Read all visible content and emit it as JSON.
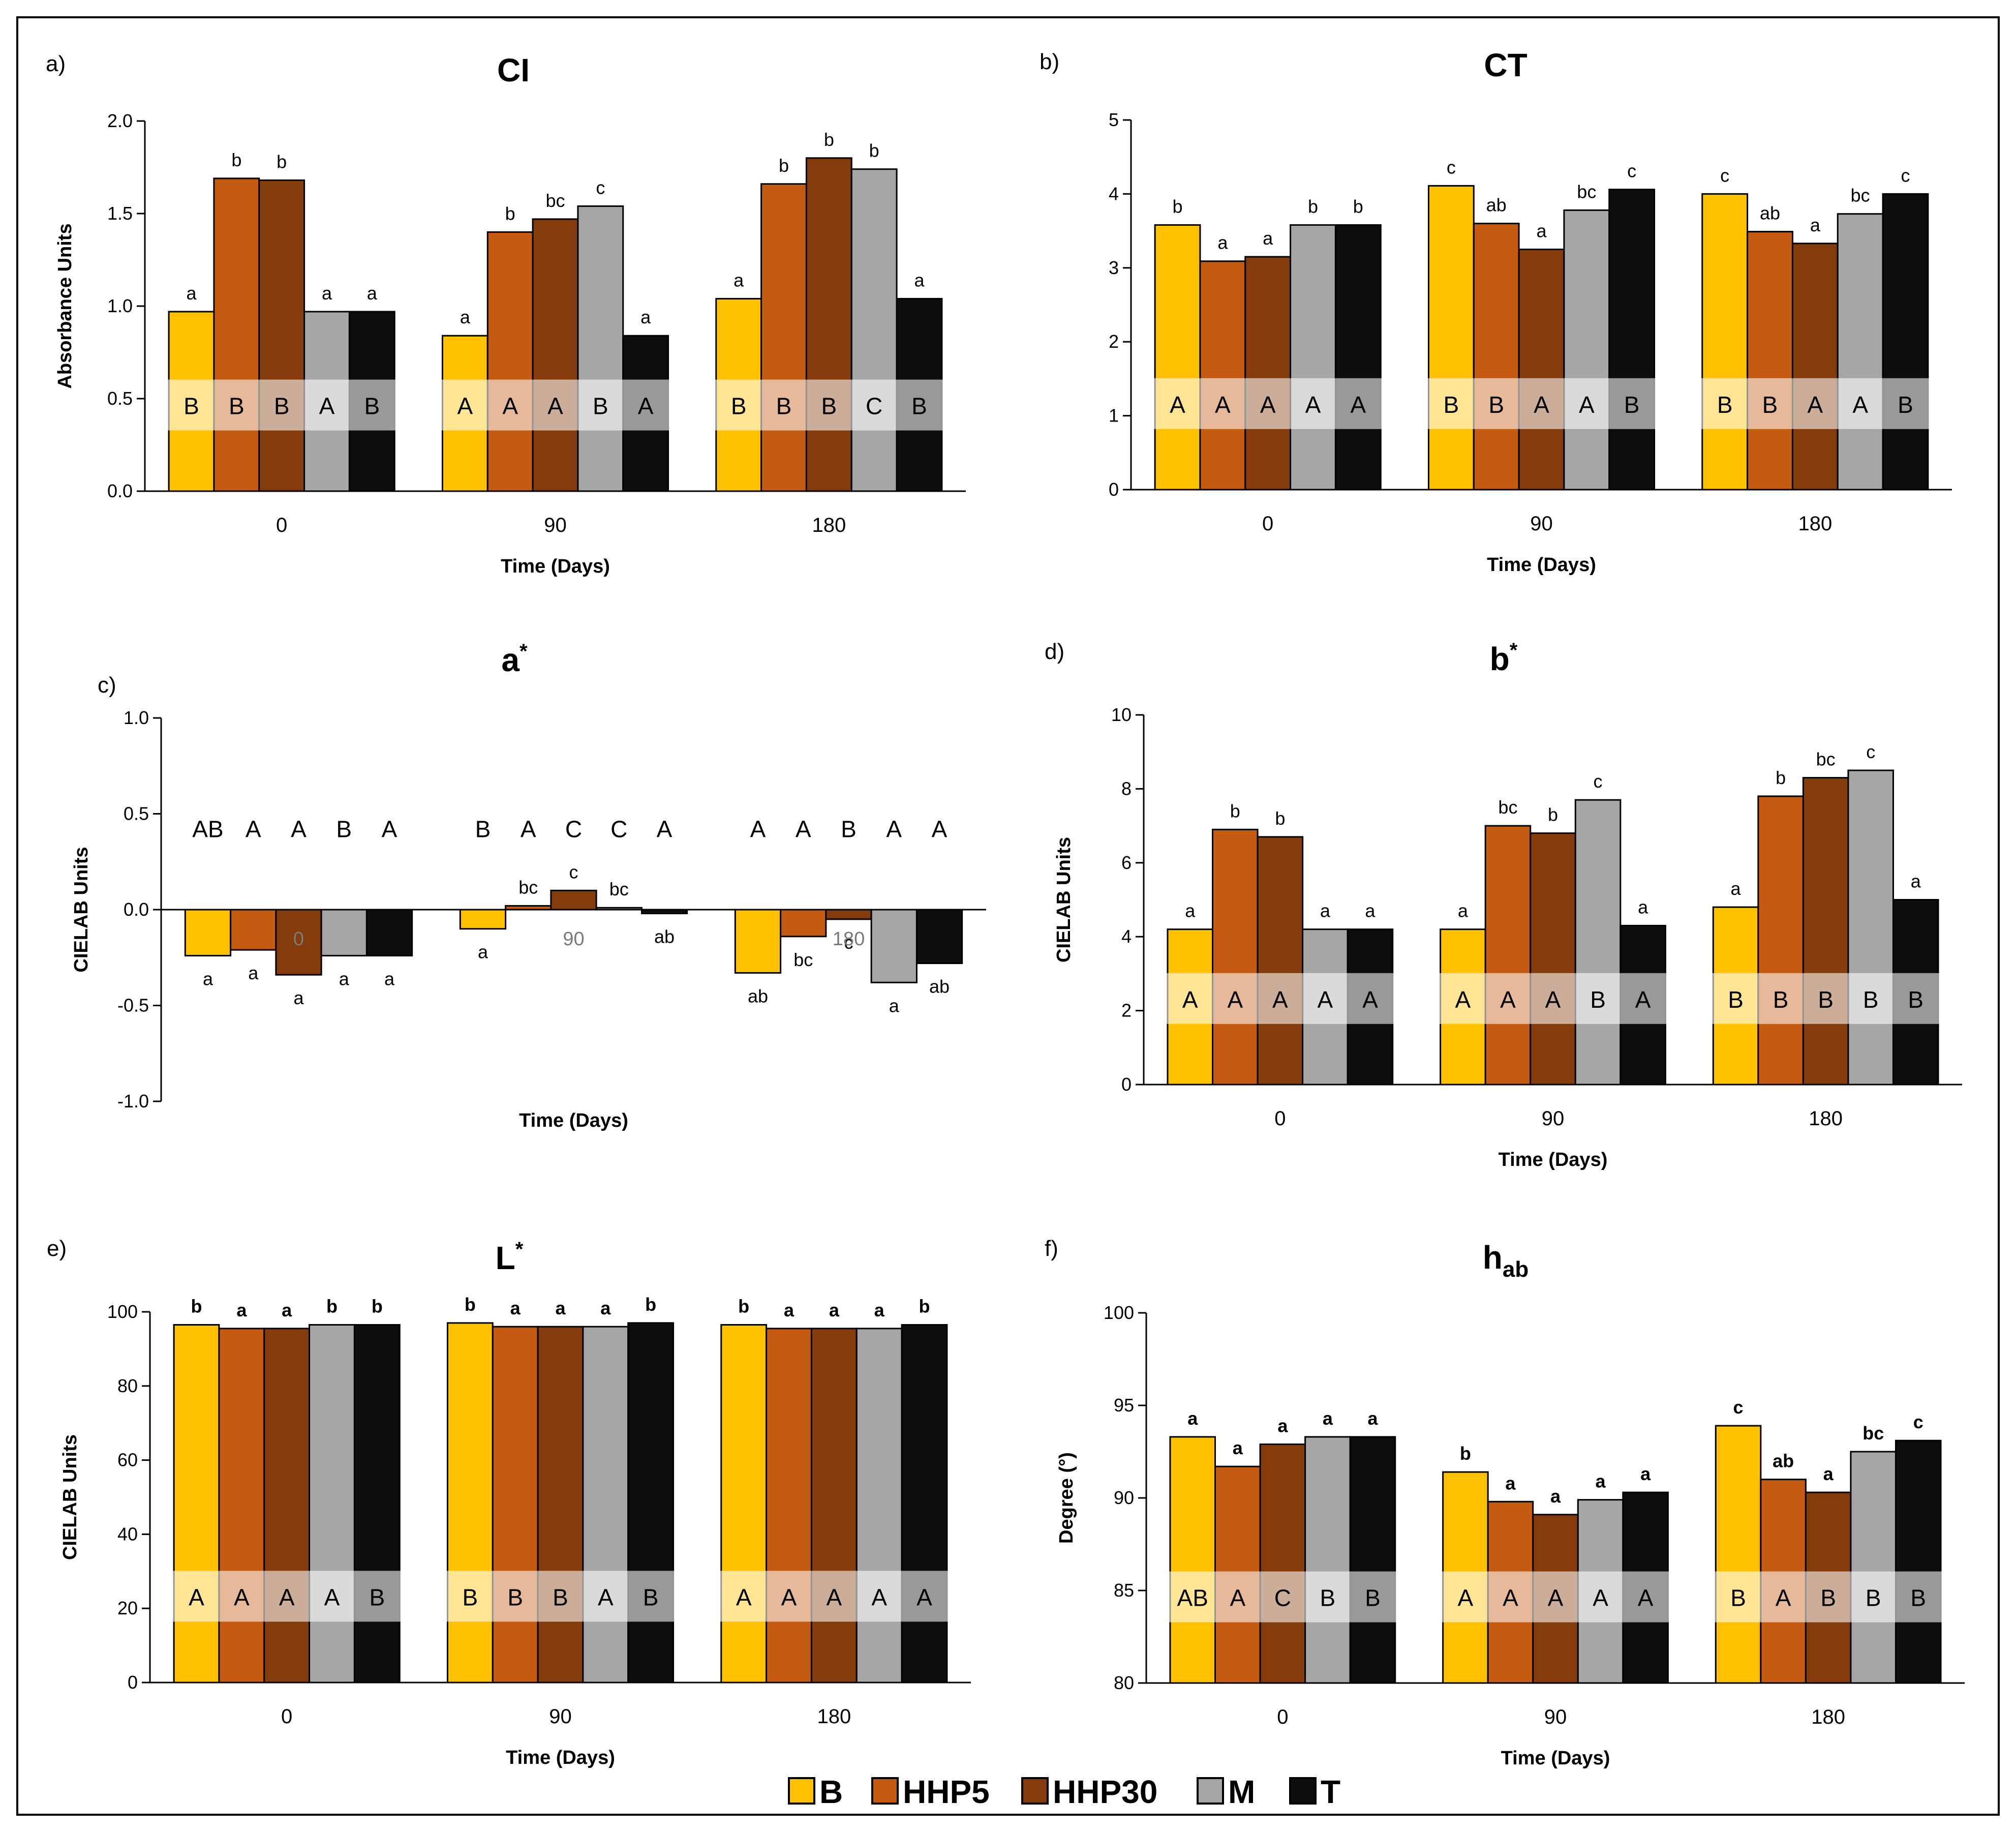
{
  "colors": {
    "B": "#FFC000",
    "HHP5": "#C55A11",
    "HHP30": "#843C0C",
    "M": "#A6A6A6",
    "T": "#0D0D0D"
  },
  "legend": [
    "B",
    "HHP5",
    "HHP30",
    "M",
    "T"
  ],
  "chart_data": [
    {
      "panel": "a)",
      "title": "CI",
      "title_sup": "",
      "title_sub": "",
      "type": "bar",
      "ylabel": "Absorbance Units",
      "xlabel": "Time (Days)",
      "ylim": [
        0,
        2
      ],
      "yticks": [
        "0.0",
        "0.5",
        "1.0",
        "1.5",
        "2.0"
      ],
      "categories": [
        "0",
        "90",
        "180"
      ],
      "series": [
        {
          "name": "B",
          "values": [
            0.97,
            0.84,
            1.04
          ]
        },
        {
          "name": "HHP5",
          "values": [
            1.69,
            1.4,
            1.66
          ]
        },
        {
          "name": "HHP30",
          "values": [
            1.68,
            1.47,
            1.8
          ]
        },
        {
          "name": "M",
          "values": [
            0.97,
            1.54,
            1.74
          ]
        },
        {
          "name": "T",
          "values": [
            0.97,
            0.84,
            1.04
          ]
        }
      ],
      "lower_letters": [
        [
          "a",
          "b",
          "b",
          "a",
          "a"
        ],
        [
          "a",
          "b",
          "bc",
          "c",
          "a"
        ],
        [
          "a",
          "b",
          "b",
          "b",
          "a"
        ]
      ],
      "upper_letters": [
        [
          "B",
          "B",
          "B",
          "A",
          "B"
        ],
        [
          "A",
          "A",
          "A",
          "B",
          "A"
        ],
        [
          "B",
          "B",
          "B",
          "C",
          "B"
        ]
      ],
      "upper_position": "band",
      "lower_bold": false
    },
    {
      "panel": "b)",
      "title": "CT",
      "title_sup": "",
      "title_sub": "",
      "type": "bar",
      "ylabel": "",
      "xlabel": "Time (Days)",
      "ylim": [
        0,
        5
      ],
      "yticks": [
        "0",
        "1",
        "2",
        "3",
        "4",
        "5"
      ],
      "categories": [
        "0",
        "90",
        "180"
      ],
      "series": [
        {
          "name": "B",
          "values": [
            3.58,
            4.11,
            4.0
          ]
        },
        {
          "name": "HHP5",
          "values": [
            3.09,
            3.6,
            3.49
          ]
        },
        {
          "name": "HHP30",
          "values": [
            3.15,
            3.25,
            3.33
          ]
        },
        {
          "name": "M",
          "values": [
            3.58,
            3.78,
            3.73
          ]
        },
        {
          "name": "T",
          "values": [
            3.58,
            4.06,
            4.0
          ]
        }
      ],
      "lower_letters": [
        [
          "b",
          "a",
          "a",
          "b",
          "b"
        ],
        [
          "c",
          "ab",
          "a",
          "bc",
          "c"
        ],
        [
          "c",
          "ab",
          "a",
          "bc",
          "c"
        ]
      ],
      "upper_letters": [
        [
          "A",
          "A",
          "A",
          "A",
          "A"
        ],
        [
          "B",
          "B",
          "A",
          "A",
          "B"
        ],
        [
          "B",
          "B",
          "A",
          "A",
          "B"
        ]
      ],
      "upper_position": "band",
      "lower_bold": false
    },
    {
      "panel": "c)",
      "title": "a",
      "title_sup": "*",
      "title_sub": "",
      "type": "bar",
      "ylabel": "CIELAB Units",
      "xlabel": "Time (Days)",
      "ylim": [
        -1,
        1
      ],
      "yticks": [
        "-1.0",
        "-0.5",
        "0.0",
        "0.5",
        "1.0"
      ],
      "categories": [
        "0",
        "90",
        "180"
      ],
      "series": [
        {
          "name": "B",
          "values": [
            -0.24,
            -0.1,
            -0.33
          ]
        },
        {
          "name": "HHP5",
          "values": [
            -0.21,
            0.02,
            -0.14
          ]
        },
        {
          "name": "HHP30",
          "values": [
            -0.34,
            0.1,
            -0.05
          ]
        },
        {
          "name": "M",
          "values": [
            -0.24,
            0.01,
            -0.38
          ]
        },
        {
          "name": "T",
          "values": [
            -0.24,
            -0.02,
            -0.28
          ]
        }
      ],
      "lower_letters": [
        [
          "a",
          "a",
          "a",
          "a",
          "a"
        ],
        [
          "a",
          "bc",
          "c",
          "bc",
          "ab"
        ],
        [
          "ab",
          "bc",
          "c",
          "a",
          "ab"
        ]
      ],
      "upper_letters": [
        [
          "AB",
          "A",
          "A",
          "B",
          "A"
        ],
        [
          "B",
          "A",
          "C",
          "C",
          "A"
        ],
        [
          "A",
          "A",
          "B",
          "A",
          "A"
        ]
      ],
      "upper_position": "top",
      "lower_bold": false
    },
    {
      "panel": "d)",
      "title": "b",
      "title_sup": "*",
      "title_sub": "",
      "type": "bar",
      "ylabel": "CIELAB Units",
      "xlabel": "Time (Days)",
      "ylim": [
        0,
        10
      ],
      "yticks": [
        "0",
        "2",
        "4",
        "6",
        "8",
        "10"
      ],
      "categories": [
        "0",
        "90",
        "180"
      ],
      "series": [
        {
          "name": "B",
          "values": [
            4.2,
            4.2,
            4.8
          ]
        },
        {
          "name": "HHP5",
          "values": [
            6.9,
            7.0,
            7.8
          ]
        },
        {
          "name": "HHP30",
          "values": [
            6.7,
            6.8,
            8.3
          ]
        },
        {
          "name": "M",
          "values": [
            4.2,
            7.7,
            8.5
          ]
        },
        {
          "name": "T",
          "values": [
            4.2,
            4.3,
            5.0
          ]
        }
      ],
      "lower_letters": [
        [
          "a",
          "b",
          "b",
          "a",
          "a"
        ],
        [
          "a",
          "bc",
          "b",
          "c",
          "a"
        ],
        [
          "a",
          "b",
          "bc",
          "c",
          "a"
        ]
      ],
      "upper_letters": [
        [
          "A",
          "A",
          "A",
          "A",
          "A"
        ],
        [
          "A",
          "A",
          "A",
          "B",
          "A"
        ],
        [
          "B",
          "B",
          "B",
          "B",
          "B"
        ]
      ],
      "upper_position": "band",
      "lower_bold": false
    },
    {
      "panel": "e)",
      "title": "L",
      "title_sup": "*",
      "title_sub": "",
      "type": "bar",
      "ylabel": "CIELAB Units",
      "xlabel": "Time (Days)",
      "ylim": [
        0,
        100
      ],
      "yticks": [
        "0",
        "20",
        "40",
        "60",
        "80",
        "100"
      ],
      "categories": [
        "0",
        "90",
        "180"
      ],
      "series": [
        {
          "name": "B",
          "values": [
            96.5,
            97.0,
            96.5
          ]
        },
        {
          "name": "HHP5",
          "values": [
            95.5,
            96.0,
            95.5
          ]
        },
        {
          "name": "HHP30",
          "values": [
            95.5,
            96.0,
            95.5
          ]
        },
        {
          "name": "M",
          "values": [
            96.5,
            96.0,
            95.5
          ]
        },
        {
          "name": "T",
          "values": [
            96.5,
            97.0,
            96.5
          ]
        }
      ],
      "lower_letters": [
        [
          "b",
          "a",
          "a",
          "b",
          "b"
        ],
        [
          "b",
          "a",
          "a",
          "a",
          "b"
        ],
        [
          "b",
          "a",
          "a",
          "a",
          "b"
        ]
      ],
      "upper_letters": [
        [
          "A",
          "A",
          "A",
          "A",
          "B"
        ],
        [
          "B",
          "B",
          "B",
          "A",
          "B"
        ],
        [
          "A",
          "A",
          "A",
          "A",
          "A"
        ]
      ],
      "upper_position": "band",
      "lower_bold": true
    },
    {
      "panel": "f)",
      "title": "h",
      "title_sup": "",
      "title_sub": "ab",
      "type": "bar",
      "ylabel": "Degree (°)",
      "xlabel": "Time (Days)",
      "ylim": [
        80,
        100
      ],
      "yticks": [
        "80",
        "85",
        "90",
        "95",
        "100"
      ],
      "categories": [
        "0",
        "90",
        "180"
      ],
      "series": [
        {
          "name": "B",
          "values": [
            93.3,
            91.4,
            93.9
          ]
        },
        {
          "name": "HHP5",
          "values": [
            91.7,
            89.8,
            91.0
          ]
        },
        {
          "name": "HHP30",
          "values": [
            92.9,
            89.1,
            90.3
          ]
        },
        {
          "name": "M",
          "values": [
            93.3,
            89.9,
            92.5
          ]
        },
        {
          "name": "T",
          "values": [
            93.3,
            90.3,
            93.1
          ]
        }
      ],
      "lower_letters": [
        [
          "a",
          "a",
          "a",
          "a",
          "a"
        ],
        [
          "b",
          "a",
          "a",
          "a",
          "a"
        ],
        [
          "c",
          "ab",
          "a",
          "bc",
          "c"
        ]
      ],
      "upper_letters": [
        [
          "AB",
          "A",
          "C",
          "B",
          "B"
        ],
        [
          "A",
          "A",
          "A",
          "A",
          "A"
        ],
        [
          "B",
          "A",
          "B",
          "B",
          "B"
        ]
      ],
      "upper_position": "band",
      "lower_bold": true
    }
  ]
}
